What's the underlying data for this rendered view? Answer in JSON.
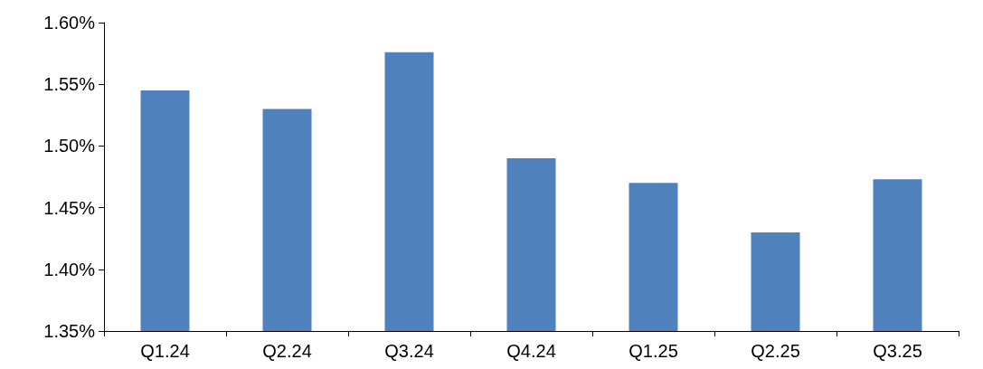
{
  "chart_data": {
    "type": "bar",
    "categories": [
      "Q1.24",
      "Q2.24",
      "Q3.24",
      "Q4.24",
      "Q1.25",
      "Q2.25",
      "Q3.25"
    ],
    "values": [
      1.545,
      1.53,
      1.576,
      1.49,
      1.47,
      1.43,
      1.473
    ],
    "color": "#4f81bd",
    "ylim": [
      1.35,
      1.6
    ],
    "yticks": [
      {
        "value": 1.35,
        "label": "1.35%"
      },
      {
        "value": 1.4,
        "label": "1.40%"
      },
      {
        "value": 1.45,
        "label": "1.45%"
      },
      {
        "value": 1.5,
        "label": "1.50%"
      },
      {
        "value": 1.55,
        "label": "1.55%"
      },
      {
        "value": 1.6,
        "label": "1.60%"
      }
    ],
    "grid": false
  }
}
